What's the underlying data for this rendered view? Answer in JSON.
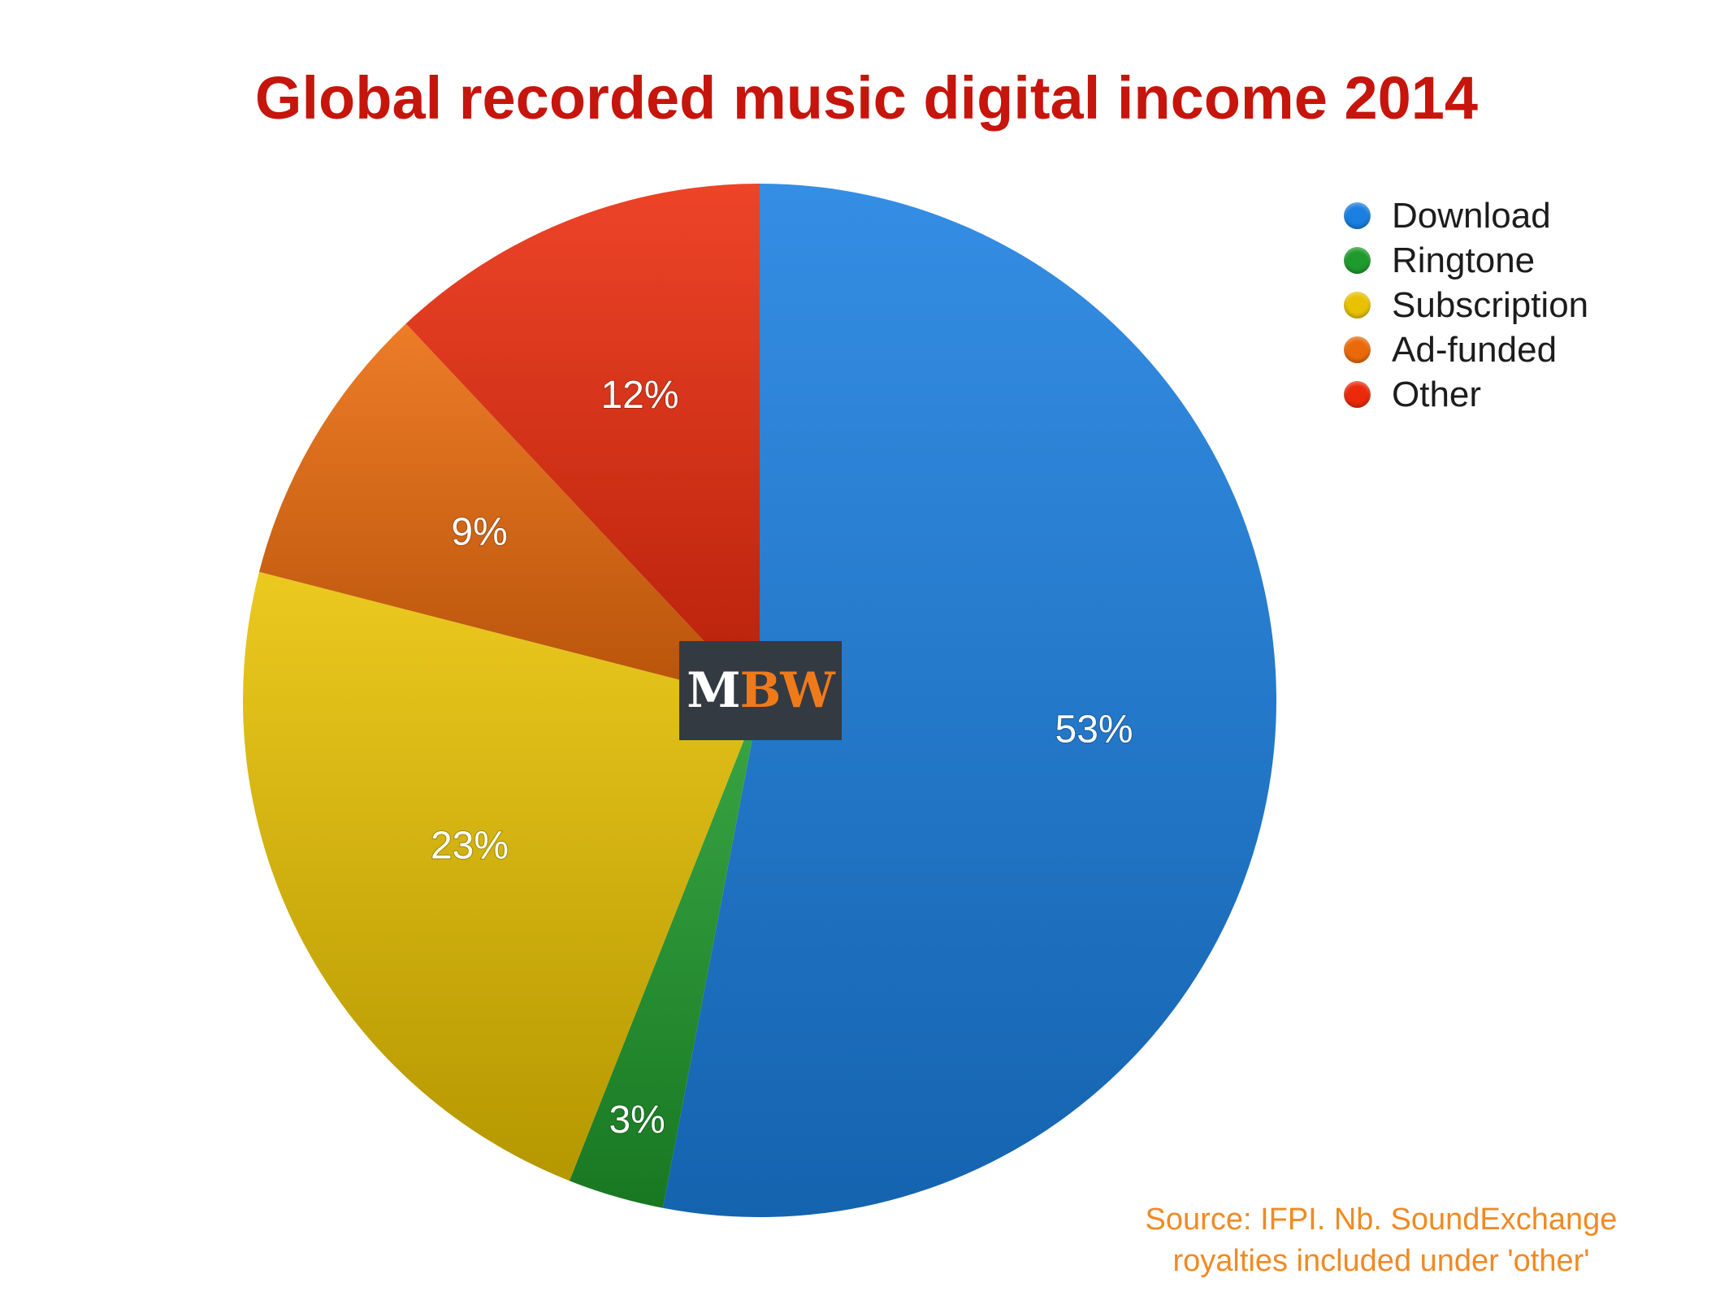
{
  "chart_data": {
    "type": "pie",
    "title": "Global recorded music digital income 2014",
    "categories": [
      "Download",
      "Ringtone",
      "Subscription",
      "Ad-funded",
      "Other"
    ],
    "values": [
      53,
      3,
      23,
      9,
      12
    ],
    "labels": [
      "53%",
      "3%",
      "23%",
      "9%",
      "12%"
    ],
    "colors": [
      "#1a7fe0",
      "#1f9a2c",
      "#e8c200",
      "#ea6a0b",
      "#ea2a0b"
    ],
    "start_angle": "12 o'clock, clockwise",
    "legend_position": "top-right"
  },
  "legend": {
    "items": [
      {
        "label": "Download",
        "color": "#1a7fe0"
      },
      {
        "label": "Ringtone",
        "color": "#1f9a2c"
      },
      {
        "label": "Subscription",
        "color": "#e8c200"
      },
      {
        "label": "Ad-funded",
        "color": "#ea6a0b"
      },
      {
        "label": "Other",
        "color": "#ea2a0b"
      }
    ]
  },
  "logo": {
    "text": "MBW",
    "first": "M",
    "rest": "BW",
    "icon": "mbw-logo"
  },
  "source": {
    "line1": "Source: IFPI.  Nb. SoundExchange",
    "line2": "royalties included under 'other'"
  }
}
